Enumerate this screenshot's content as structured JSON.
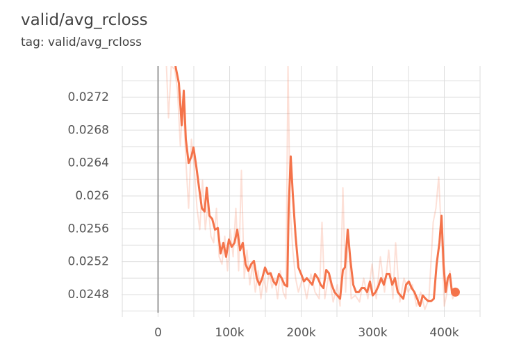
{
  "chart_data": {
    "type": "line",
    "title": "valid/avg_rcloss",
    "subtitle": "tag: valid/avg_rcloss",
    "xlim": [
      -51000,
      450000
    ],
    "ylim": [
      0.02458,
      0.02758
    ],
    "xticks": [
      0,
      {
        "value": 100000,
        "label": "100k"
      },
      {
        "value": 200000,
        "label": "200k"
      },
      {
        "value": 300000,
        "label": "300k"
      },
      {
        "value": 400000,
        "label": "400k"
      }
    ],
    "yticks": [
      0.0248,
      0.0252,
      0.0256,
      0.026,
      0.0264,
      0.0268,
      0.0272
    ],
    "xgrid": [
      -50000,
      0,
      50000,
      100000,
      150000,
      200000,
      250000,
      300000,
      350000,
      400000,
      450000
    ],
    "ygrid": [
      0.0246,
      0.0248,
      0.025,
      0.0252,
      0.0254,
      0.0256,
      0.0258,
      0.026,
      0.0262,
      0.0264,
      0.0266,
      0.0268,
      0.027,
      0.0272,
      0.0274
    ],
    "series": [
      {
        "color": "#f4734a",
        "opacity": 0.22,
        "x": [
          11700,
          14600,
          18400,
          23300,
          27200,
          31100,
          35000,
          38800,
          42700,
          46600,
          50500,
          54400,
          58300,
          62100,
          66000,
          69900,
          73800,
          77700,
          81600,
          85400,
          89300,
          93200,
          97100,
          101000,
          104900,
          108700,
          112600,
          116500,
          120400,
          124300,
          128200,
          132000,
          135900,
          139800,
          143700,
          147600,
          151500,
          155300,
          159200,
          163100,
          167000,
          170900,
          174800,
          178600,
          181600,
          184500,
          188300,
          192200,
          196100,
          201900,
          207800,
          213600,
          219400,
          225200,
          229100,
          233000,
          238800,
          244700,
          250500,
          254400,
          258300,
          262100,
          266000,
          269900,
          275700,
          281600,
          287400,
          293200,
          299000,
          304900,
          310700,
          316500,
          322300,
          328200,
          332000,
          337900,
          343700,
          349500,
          355300,
          361200,
          367000,
          372800,
          378600,
          384500,
          388300,
          392200,
          396100,
          400000,
          403900,
          407800,
          411700,
          415500
        ],
        "values": [
          0.02758,
          0.02695,
          0.02758,
          0.02754,
          0.02728,
          0.02661,
          0.0272,
          0.02644,
          0.02585,
          0.02669,
          0.02636,
          0.02585,
          0.02559,
          0.02619,
          0.02559,
          0.02593,
          0.02551,
          0.02543,
          0.02585,
          0.02526,
          0.02517,
          0.02551,
          0.02509,
          0.02559,
          0.02526,
          0.02585,
          0.02509,
          0.02631,
          0.025,
          0.02534,
          0.02492,
          0.02517,
          0.02483,
          0.02509,
          0.02475,
          0.025,
          0.02483,
          0.02509,
          0.02488,
          0.025,
          0.02475,
          0.02509,
          0.02483,
          0.02475,
          0.02758,
          0.02585,
          0.02534,
          0.025,
          0.02483,
          0.025,
          0.02475,
          0.02505,
          0.02483,
          0.02475,
          0.02568,
          0.02475,
          0.02505,
          0.02471,
          0.02492,
          0.02466,
          0.0261,
          0.02483,
          0.02559,
          0.02475,
          0.02479,
          0.02471,
          0.025,
          0.02475,
          0.02517,
          0.02475,
          0.02526,
          0.02483,
          0.02534,
          0.02475,
          0.02543,
          0.02471,
          0.025,
          0.02483,
          0.02492,
          0.02466,
          0.02483,
          0.02462,
          0.02475,
          0.02568,
          0.02585,
          0.02623,
          0.02551,
          0.02466,
          0.02483,
          0.02509,
          0.02475,
          0.02483
        ]
      },
      {
        "color": "#f4734a",
        "opacity": 1,
        "x": [
          24300,
          29100,
          33000,
          35900,
          38800,
          42700,
          46600,
          49500,
          53400,
          57300,
          61200,
          65000,
          68000,
          71800,
          75700,
          79600,
          83500,
          87400,
          91300,
          95100,
          99000,
          102900,
          106800,
          110700,
          114600,
          118400,
          122300,
          126200,
          130100,
          134000,
          137900,
          141700,
          145600,
          149500,
          153400,
          157300,
          161200,
          165000,
          168900,
          172800,
          176700,
          180600,
          182500,
          185400,
          188300,
          192200,
          196100,
          200000,
          203900,
          207800,
          211700,
          215500,
          219400,
          223300,
          227200,
          231100,
          235000,
          238800,
          242700,
          246600,
          250500,
          254400,
          258300,
          261200,
          265000,
          268900,
          272800,
          276700,
          280600,
          284500,
          288300,
          292200,
          296100,
          300000,
          303900,
          307800,
          311700,
          315500,
          319400,
          323300,
          327200,
          331100,
          335000,
          338800,
          342700,
          346600,
          350500,
          354400,
          358300,
          362100,
          366000,
          369900,
          373800,
          377700,
          381600,
          385400,
          389300,
          393200,
          396100,
          399000,
          401900,
          404900,
          407800,
          410700,
          415500
        ],
        "values": [
          0.02758,
          0.02737,
          0.02686,
          0.02728,
          0.02669,
          0.0264,
          0.02648,
          0.02659,
          0.02636,
          0.0261,
          0.02585,
          0.02581,
          0.0261,
          0.02576,
          0.02572,
          0.02559,
          0.02561,
          0.0253,
          0.02543,
          0.02526,
          0.02547,
          0.02538,
          0.02543,
          0.02559,
          0.02534,
          0.02543,
          0.02517,
          0.02509,
          0.02517,
          0.02521,
          0.025,
          0.02492,
          0.025,
          0.02513,
          0.02505,
          0.02506,
          0.02496,
          0.02492,
          0.02505,
          0.025,
          0.02492,
          0.0249,
          0.02585,
          0.02648,
          0.02602,
          0.02551,
          0.02513,
          0.02505,
          0.02496,
          0.025,
          0.02496,
          0.02492,
          0.02505,
          0.025,
          0.02492,
          0.02488,
          0.0251,
          0.02506,
          0.02492,
          0.02483,
          0.02479,
          0.02475,
          0.0251,
          0.02513,
          0.02559,
          0.02521,
          0.02492,
          0.02483,
          0.02483,
          0.02488,
          0.02488,
          0.02483,
          0.02496,
          0.02479,
          0.02483,
          0.0249,
          0.025,
          0.02492,
          0.02505,
          0.02505,
          0.02492,
          0.025,
          0.02483,
          0.02479,
          0.02475,
          0.02492,
          0.02496,
          0.02488,
          0.02483,
          0.02475,
          0.02466,
          0.02479,
          0.02475,
          0.02472,
          0.02472,
          0.02475,
          0.02517,
          0.02543,
          0.02576,
          0.02517,
          0.02483,
          0.025,
          0.02505,
          0.02483,
          0.02483
        ]
      }
    ]
  }
}
